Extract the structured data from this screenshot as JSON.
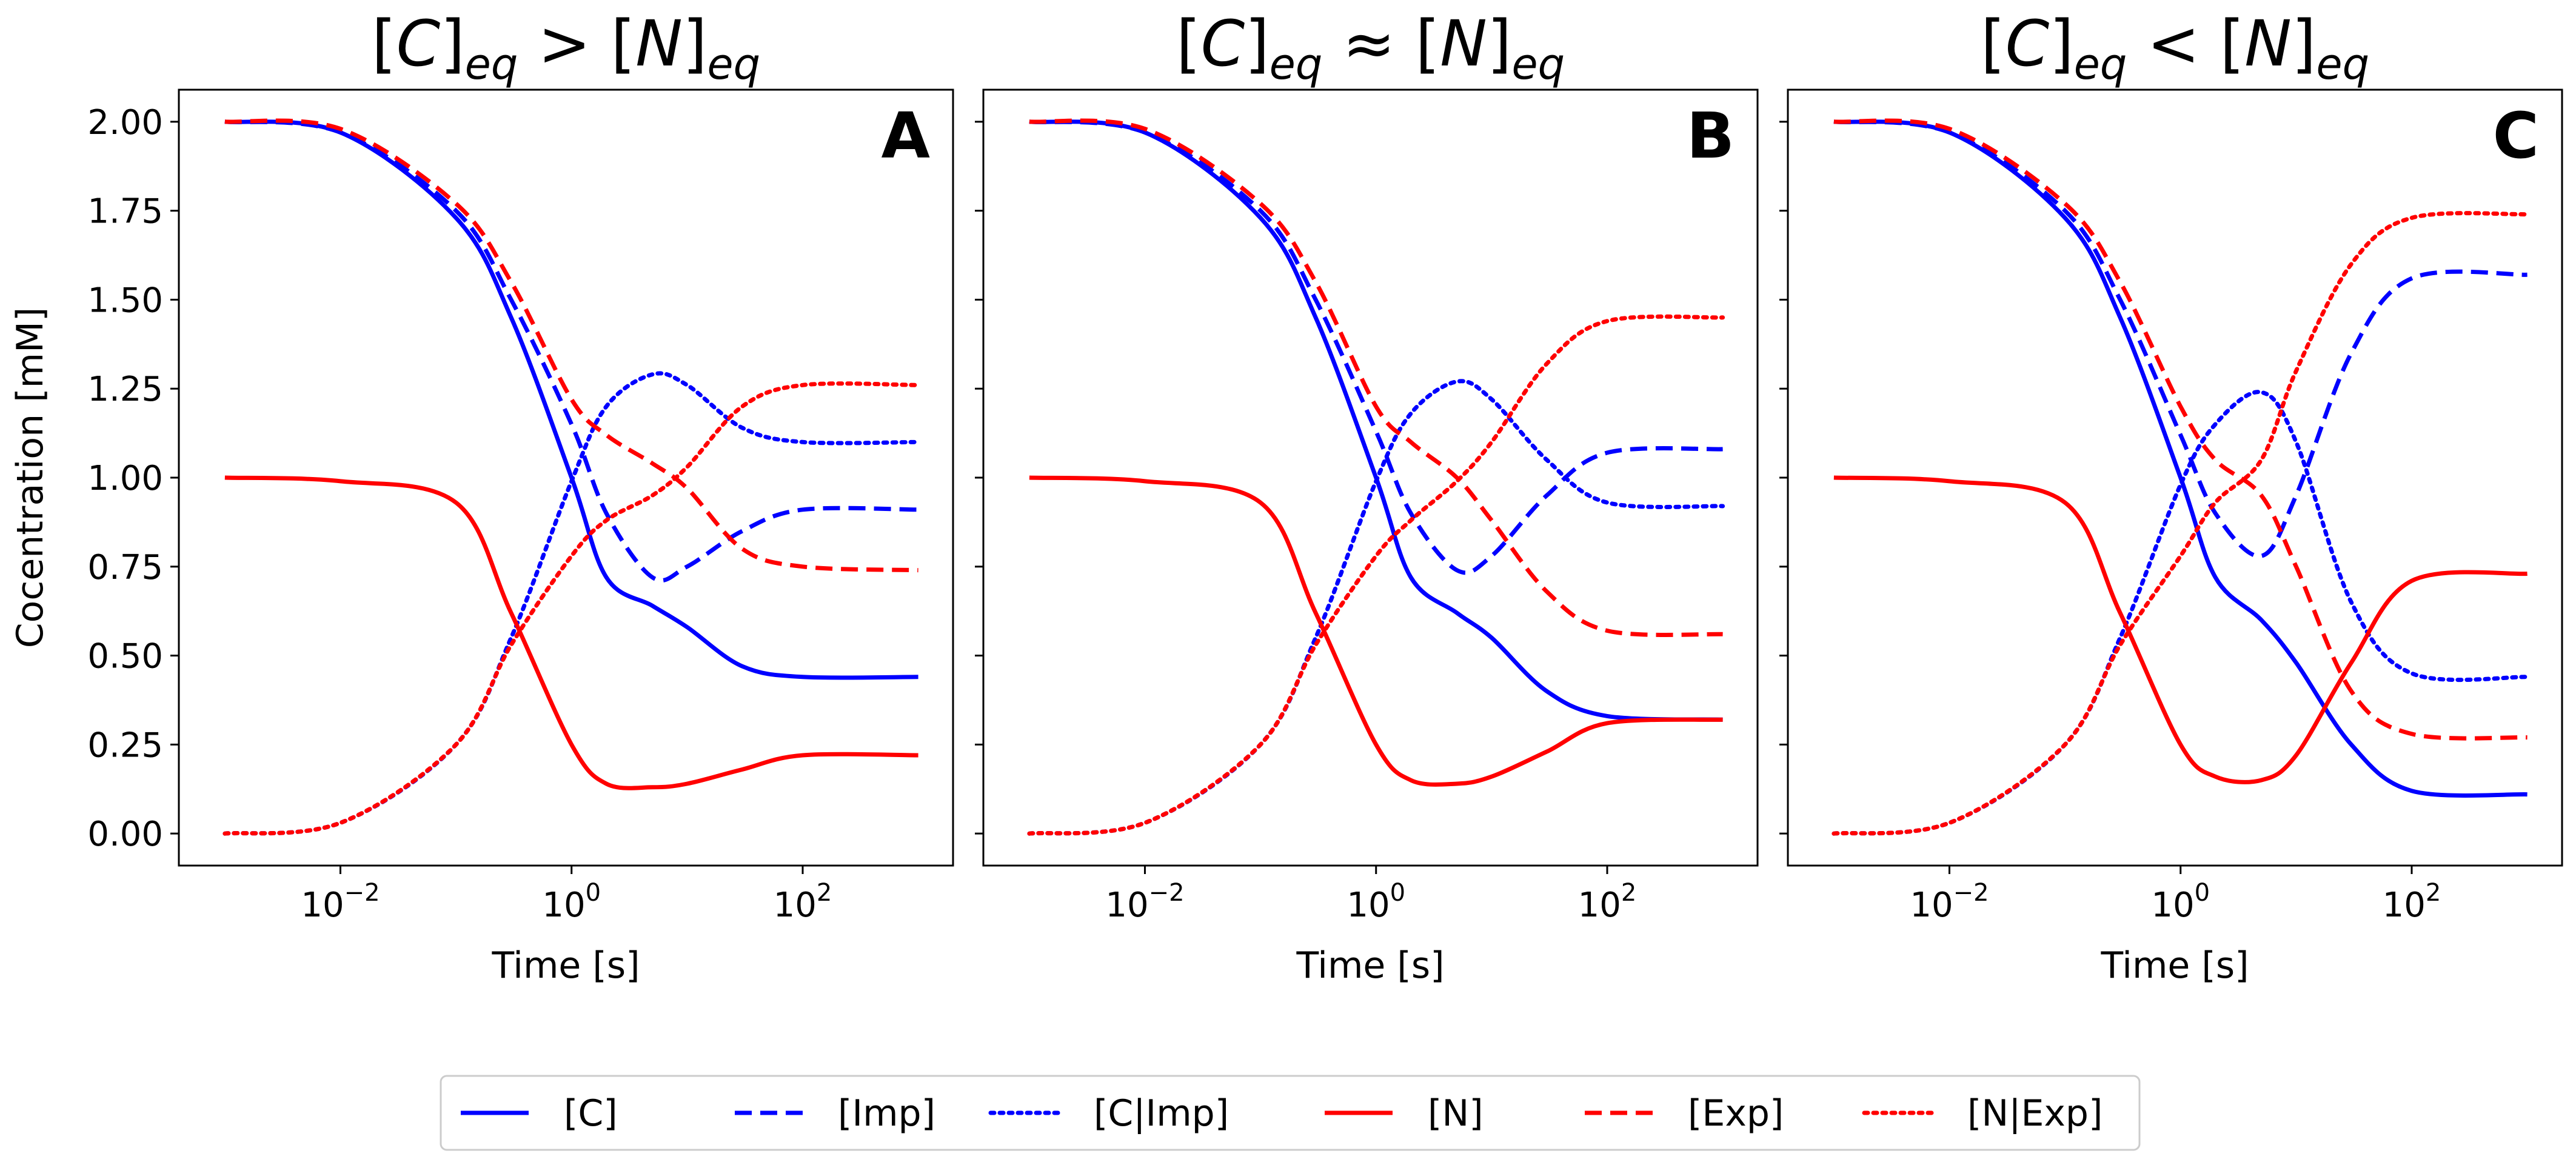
{
  "chart_data": [
    {
      "type": "line",
      "panel": "A",
      "title": {
        "prefix": "[",
        "a": "C",
        "mid": "]",
        "sub1": "eq",
        "op": " > [",
        "b": "N",
        "end": "]",
        "sub2": "eq"
      },
      "xlabel": "Time [s]",
      "ylabel": "Cocentration [mM]",
      "xscale": "log",
      "xlim": [
        0.0004,
        2000
      ],
      "ylim": [
        -0.09,
        2.09
      ],
      "x_ticks": [
        {
          "value": 0.01,
          "label": "10",
          "exp": "−2"
        },
        {
          "value": 1,
          "label": "10",
          "exp": "0"
        },
        {
          "value": 100,
          "label": "10",
          "exp": "2"
        }
      ],
      "y_ticks": [
        "0.00",
        "0.25",
        "0.50",
        "0.75",
        "1.00",
        "1.25",
        "1.50",
        "1.75",
        "2.00"
      ],
      "x": [
        0.001,
        0.01,
        0.1,
        0.3,
        1,
        2,
        5,
        10,
        30,
        100,
        1000
      ],
      "series": [
        {
          "name": "[C]",
          "values": [
            2.0,
            1.97,
            1.73,
            1.45,
            1.0,
            0.72,
            0.64,
            0.58,
            0.47,
            0.44,
            0.44
          ]
        },
        {
          "name": "[Imp]",
          "values": [
            2.0,
            1.97,
            1.75,
            1.5,
            1.15,
            0.9,
            0.72,
            0.75,
            0.85,
            0.91,
            0.91
          ]
        },
        {
          "name": "[C|Imp]",
          "values": [
            0.0,
            0.03,
            0.25,
            0.55,
            0.99,
            1.2,
            1.29,
            1.26,
            1.14,
            1.1,
            1.1
          ]
        },
        {
          "name": "[N]",
          "values": [
            1.0,
            0.99,
            0.93,
            0.62,
            0.25,
            0.14,
            0.13,
            0.14,
            0.18,
            0.22,
            0.22
          ]
        },
        {
          "name": "[Exp]",
          "values": [
            2.0,
            1.98,
            1.77,
            1.55,
            1.22,
            1.12,
            1.04,
            0.97,
            0.8,
            0.75,
            0.74
          ]
        },
        {
          "name": "[N|Exp]",
          "values": [
            0.0,
            0.03,
            0.25,
            0.53,
            0.78,
            0.88,
            0.95,
            1.03,
            1.2,
            1.26,
            1.26
          ]
        }
      ]
    },
    {
      "type": "line",
      "panel": "B",
      "title": {
        "prefix": "[",
        "a": "C",
        "mid": "]",
        "sub1": "eq",
        "op": " ≈ [",
        "b": "N",
        "end": "]",
        "sub2": "eq"
      },
      "xlabel": "Time [s]",
      "xscale": "log",
      "xlim": [
        0.0004,
        2000
      ],
      "ylim": [
        -0.09,
        2.09
      ],
      "x_ticks": [
        {
          "value": 0.01,
          "label": "10",
          "exp": "−2"
        },
        {
          "value": 1,
          "label": "10",
          "exp": "0"
        },
        {
          "value": 100,
          "label": "10",
          "exp": "2"
        }
      ],
      "x": [
        0.001,
        0.01,
        0.1,
        0.3,
        1,
        2,
        5,
        10,
        30,
        100,
        1000
      ],
      "series": [
        {
          "name": "[C]",
          "values": [
            2.0,
            1.97,
            1.73,
            1.45,
            1.0,
            0.72,
            0.62,
            0.55,
            0.4,
            0.33,
            0.32
          ]
        },
        {
          "name": "[Imp]",
          "values": [
            2.0,
            1.97,
            1.75,
            1.5,
            1.13,
            0.9,
            0.74,
            0.78,
            0.95,
            1.07,
            1.08
          ]
        },
        {
          "name": "[C|Imp]",
          "values": [
            0.0,
            0.03,
            0.25,
            0.55,
            0.99,
            1.18,
            1.27,
            1.22,
            1.05,
            0.93,
            0.92
          ]
        },
        {
          "name": "[N]",
          "values": [
            1.0,
            0.99,
            0.93,
            0.62,
            0.25,
            0.15,
            0.14,
            0.16,
            0.23,
            0.31,
            0.32
          ]
        },
        {
          "name": "[Exp]",
          "values": [
            2.0,
            1.98,
            1.77,
            1.55,
            1.2,
            1.1,
            1.0,
            0.88,
            0.68,
            0.57,
            0.56
          ]
        },
        {
          "name": "[N|Exp]",
          "values": [
            0.0,
            0.03,
            0.25,
            0.53,
            0.78,
            0.88,
            0.99,
            1.1,
            1.32,
            1.44,
            1.45
          ]
        }
      ]
    },
    {
      "type": "line",
      "panel": "C",
      "title": {
        "prefix": "[",
        "a": "C",
        "mid": "]",
        "sub1": "eq",
        "op": " < [",
        "b": "N",
        "end": "]",
        "sub2": "eq"
      },
      "xlabel": "Time [s]",
      "xscale": "log",
      "xlim": [
        0.0004,
        2000
      ],
      "ylim": [
        -0.09,
        2.09
      ],
      "x_ticks": [
        {
          "value": 0.01,
          "label": "10",
          "exp": "−2"
        },
        {
          "value": 1,
          "label": "10",
          "exp": "0"
        },
        {
          "value": 100,
          "label": "10",
          "exp": "2"
        }
      ],
      "x": [
        0.001,
        0.01,
        0.1,
        0.3,
        1,
        2,
        5,
        10,
        30,
        100,
        1000
      ],
      "series": [
        {
          "name": "[C]",
          "values": [
            2.0,
            1.97,
            1.73,
            1.45,
            1.0,
            0.72,
            0.6,
            0.48,
            0.25,
            0.12,
            0.11
          ]
        },
        {
          "name": "[Imp]",
          "values": [
            2.0,
            1.97,
            1.75,
            1.5,
            1.12,
            0.9,
            0.78,
            0.95,
            1.35,
            1.56,
            1.57
          ]
        },
        {
          "name": "[C|Imp]",
          "values": [
            0.0,
            0.03,
            0.25,
            0.55,
            0.98,
            1.15,
            1.24,
            1.1,
            0.65,
            0.45,
            0.44
          ]
        },
        {
          "name": "[N]",
          "values": [
            1.0,
            0.99,
            0.93,
            0.62,
            0.25,
            0.16,
            0.15,
            0.22,
            0.48,
            0.71,
            0.73
          ]
        },
        {
          "name": "[Exp]",
          "values": [
            2.0,
            1.98,
            1.77,
            1.55,
            1.2,
            1.05,
            0.95,
            0.75,
            0.4,
            0.28,
            0.27
          ]
        },
        {
          "name": "[N|Exp]",
          "values": [
            0.0,
            0.03,
            0.25,
            0.53,
            0.78,
            0.93,
            1.05,
            1.3,
            1.6,
            1.73,
            1.74
          ]
        }
      ]
    }
  ],
  "series_styles": [
    {
      "name": "[C]",
      "color": "#0000ff",
      "style": "solid"
    },
    {
      "name": "[Imp]",
      "color": "#0000ff",
      "style": "dashed"
    },
    {
      "name": "[C|Imp]",
      "color": "#0000ff",
      "style": "dotted"
    },
    {
      "name": "[N]",
      "color": "#ff0000",
      "style": "solid"
    },
    {
      "name": "[Exp]",
      "color": "#ff0000",
      "style": "dashed"
    },
    {
      "name": "[N|Exp]",
      "color": "#ff0000",
      "style": "dotted"
    }
  ],
  "legend": {
    "placement": "bottom-center",
    "entries": [
      "[C]",
      "[Imp]",
      "[C|Imp]",
      "[N]",
      "[Exp]",
      "[N|Exp]"
    ]
  }
}
